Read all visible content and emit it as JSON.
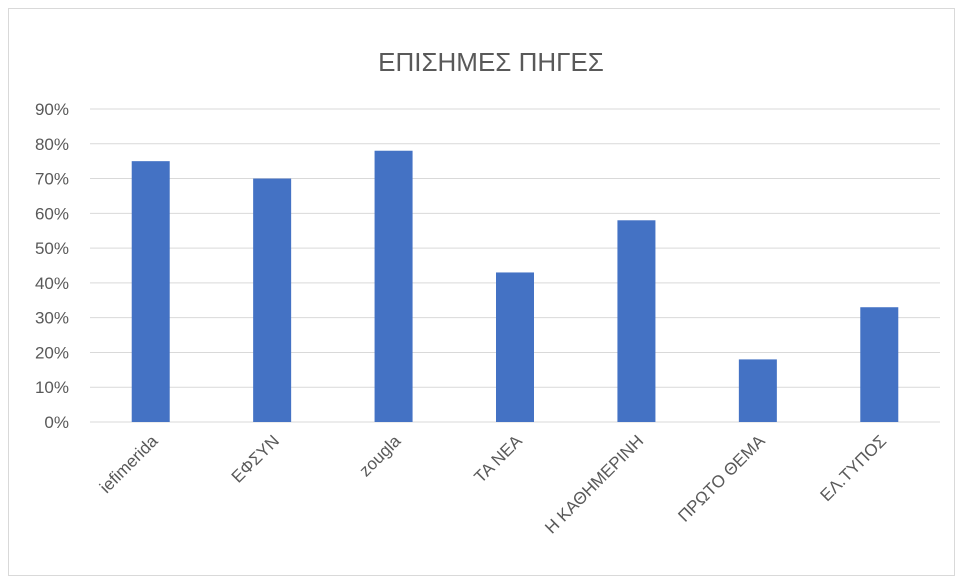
{
  "chart_data": {
    "type": "bar",
    "title": "ΕΠΙΣΗΜΕΣ ΠΗΓΕΣ",
    "xlabel": "",
    "ylabel": "",
    "categories": [
      "iefimerida",
      "ΕΦΣΥΝ",
      "zougla",
      "ΤΑ ΝΕΑ",
      "Η ΚΑΘΗΜΕΡΙΝΗ",
      "ΠΡΩΤΟ ΘΕΜΑ",
      "ΕΛ.ΤΥΠΟΣ"
    ],
    "values": [
      75,
      70,
      78,
      43,
      58,
      18,
      33
    ],
    "ylim": [
      0,
      90
    ],
    "yticks": [
      "0%",
      "10%",
      "20%",
      "30%",
      "40%",
      "50%",
      "60%",
      "70%",
      "80%",
      "90%"
    ],
    "grid": true,
    "legend": "none",
    "bar_color": "#4472C4"
  }
}
